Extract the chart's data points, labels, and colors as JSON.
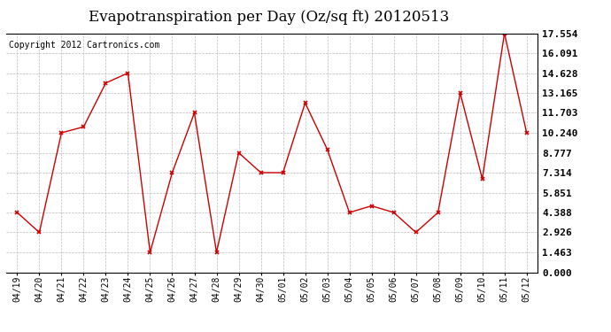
{
  "title": "Evapotranspiration per Day (Oz/sq ft) 20120513",
  "copyright_text": "Copyright 2012 Cartronics.com",
  "x_labels": [
    "04/19",
    "04/20",
    "04/21",
    "04/22",
    "04/23",
    "04/24",
    "04/25",
    "04/26",
    "04/27",
    "04/28",
    "04/29",
    "04/30",
    "05/01",
    "05/02",
    "05/03",
    "05/04",
    "05/05",
    "05/06",
    "05/07",
    "05/08",
    "05/09",
    "05/10",
    "05/11",
    "05/12"
  ],
  "y_values": [
    4.388,
    2.926,
    10.24,
    10.679,
    13.897,
    14.628,
    1.463,
    7.314,
    11.703,
    1.463,
    8.777,
    7.314,
    7.314,
    12.433,
    9.021,
    4.388,
    4.875,
    4.388,
    2.926,
    4.388,
    13.165,
    6.851,
    17.554,
    10.24
  ],
  "y_ticks": [
    0.0,
    1.463,
    2.926,
    4.388,
    5.851,
    7.314,
    8.777,
    10.24,
    11.703,
    13.165,
    14.628,
    16.091,
    17.554
  ],
  "line_color": "#cc0000",
  "marker": "x",
  "marker_color": "#cc0000",
  "background_color": "#ffffff",
  "grid_color": "#bbbbbb",
  "title_fontsize": 12,
  "copyright_fontsize": 7,
  "ymin": 0.0,
  "ymax": 17.554
}
